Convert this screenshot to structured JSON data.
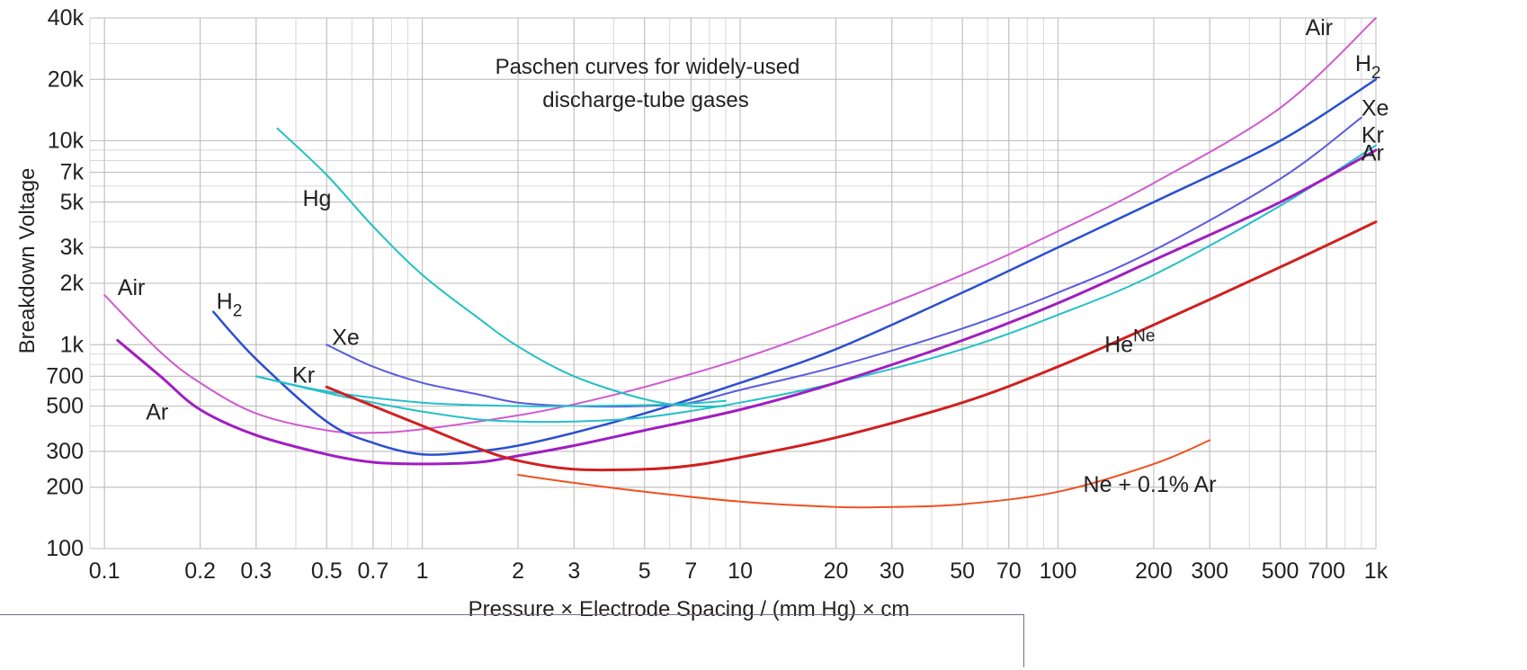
{
  "chart_data": {
    "type": "line",
    "title_lines": [
      "Paschen curves for widely-used",
      "discharge-tube gases"
    ],
    "xlabel": "Pressure × Electrode Spacing  /  (mm Hg) × cm",
    "ylabel": "Breakdown Voltage",
    "x_scale": "log",
    "y_scale": "log",
    "xlim": [
      0.09,
      1000
    ],
    "ylim": [
      100,
      40000
    ],
    "grid": true,
    "x_ticks": [
      {
        "v": 0.1,
        "label": "0.1"
      },
      {
        "v": 0.2,
        "label": "0.2"
      },
      {
        "v": 0.3,
        "label": "0.3"
      },
      {
        "v": 0.5,
        "label": "0.5"
      },
      {
        "v": 0.7,
        "label": "0.7"
      },
      {
        "v": 1,
        "label": "1"
      },
      {
        "v": 2,
        "label": "2"
      },
      {
        "v": 3,
        "label": "3"
      },
      {
        "v": 5,
        "label": "5"
      },
      {
        "v": 7,
        "label": "7"
      },
      {
        "v": 10,
        "label": "10"
      },
      {
        "v": 20,
        "label": "20"
      },
      {
        "v": 30,
        "label": "30"
      },
      {
        "v": 50,
        "label": "50"
      },
      {
        "v": 70,
        "label": "70"
      },
      {
        "v": 100,
        "label": "100"
      },
      {
        "v": 200,
        "label": "200"
      },
      {
        "v": 300,
        "label": "300"
      },
      {
        "v": 500,
        "label": "500"
      },
      {
        "v": 700,
        "label": "700"
      },
      {
        "v": 1000,
        "label": "1k"
      }
    ],
    "y_ticks": [
      {
        "v": 100,
        "label": "100"
      },
      {
        "v": 200,
        "label": "200"
      },
      {
        "v": 300,
        "label": "300"
      },
      {
        "v": 500,
        "label": "500"
      },
      {
        "v": 700,
        "label": "700"
      },
      {
        "v": 1000,
        "label": "1k"
      },
      {
        "v": 2000,
        "label": "2k"
      },
      {
        "v": 3000,
        "label": "3k"
      },
      {
        "v": 5000,
        "label": "5k"
      },
      {
        "v": 7000,
        "label": "7k"
      },
      {
        "v": 10000,
        "label": "10k"
      },
      {
        "v": 20000,
        "label": "20k"
      },
      {
        "v": 40000,
        "label": "40k"
      }
    ],
    "series": [
      {
        "name": "Air",
        "color": "#d05ad0",
        "width": 2,
        "points": [
          [
            0.1,
            1750
          ],
          [
            0.15,
            920
          ],
          [
            0.2,
            650
          ],
          [
            0.3,
            460
          ],
          [
            0.5,
            380
          ],
          [
            0.7,
            370
          ],
          [
            1,
            385
          ],
          [
            2,
            450
          ],
          [
            3,
            510
          ],
          [
            5,
            620
          ],
          [
            10,
            850
          ],
          [
            20,
            1250
          ],
          [
            50,
            2200
          ],
          [
            100,
            3600
          ],
          [
            200,
            6200
          ],
          [
            500,
            14500
          ],
          [
            1000,
            40000
          ]
        ]
      },
      {
        "name": "H2",
        "color": "#2b4fd0",
        "width": 2.5,
        "points": [
          [
            0.22,
            1450
          ],
          [
            0.3,
            850
          ],
          [
            0.5,
            420
          ],
          [
            0.7,
            330
          ],
          [
            1,
            290
          ],
          [
            1.5,
            300
          ],
          [
            2,
            320
          ],
          [
            3,
            370
          ],
          [
            5,
            460
          ],
          [
            10,
            650
          ],
          [
            20,
            950
          ],
          [
            50,
            1800
          ],
          [
            100,
            3000
          ],
          [
            200,
            5000
          ],
          [
            500,
            10000
          ],
          [
            1000,
            20000
          ]
        ]
      },
      {
        "name": "Xe",
        "color": "#5a5ae0",
        "width": 2,
        "points": [
          [
            0.5,
            1000
          ],
          [
            0.7,
            780
          ],
          [
            1,
            650
          ],
          [
            1.5,
            570
          ],
          [
            2,
            520
          ],
          [
            3,
            500
          ],
          [
            5,
            500
          ],
          [
            7,
            520
          ],
          [
            10,
            600
          ],
          [
            20,
            780
          ],
          [
            50,
            1200
          ],
          [
            100,
            1800
          ],
          [
            200,
            2900
          ],
          [
            500,
            6500
          ],
          [
            900,
            13000
          ]
        ]
      },
      {
        "name": "Kr",
        "color": "#24c0c8",
        "width": 2,
        "points": [
          [
            0.3,
            700
          ],
          [
            0.5,
            580
          ],
          [
            0.7,
            520
          ],
          [
            1,
            470
          ],
          [
            1.5,
            430
          ],
          [
            2,
            420
          ],
          [
            3,
            420
          ],
          [
            5,
            440
          ],
          [
            10,
            520
          ],
          [
            20,
            650
          ],
          [
            50,
            950
          ],
          [
            100,
            1400
          ],
          [
            200,
            2200
          ],
          [
            500,
            4800
          ],
          [
            1000,
            9500
          ]
        ]
      },
      {
        "name": "Ar",
        "color": "#a01ec0",
        "width": 3,
        "points": [
          [
            0.11,
            1050
          ],
          [
            0.15,
            700
          ],
          [
            0.2,
            480
          ],
          [
            0.3,
            360
          ],
          [
            0.5,
            290
          ],
          [
            0.7,
            265
          ],
          [
            1,
            260
          ],
          [
            1.5,
            265
          ],
          [
            2,
            285
          ],
          [
            3,
            320
          ],
          [
            5,
            380
          ],
          [
            10,
            480
          ],
          [
            20,
            650
          ],
          [
            50,
            1050
          ],
          [
            100,
            1600
          ],
          [
            200,
            2600
          ],
          [
            500,
            5000
          ],
          [
            1000,
            9000
          ]
        ]
      },
      {
        "name": "Hg",
        "color": "#22c0c0",
        "width": 2,
        "points": [
          [
            0.35,
            11500
          ],
          [
            0.5,
            6800
          ],
          [
            0.7,
            3800
          ],
          [
            1,
            2200
          ],
          [
            1.5,
            1350
          ],
          [
            2,
            980
          ],
          [
            3,
            700
          ],
          [
            5,
            540
          ],
          [
            7,
            500
          ],
          [
            9,
            500
          ]
        ]
      },
      {
        "name": "Kr (short)",
        "color": "#24c0c8",
        "width": 2,
        "points": [
          [
            0.3,
            700
          ],
          [
            0.5,
            590
          ],
          [
            1,
            520
          ],
          [
            2,
            500
          ],
          [
            3,
            500
          ],
          [
            5,
            505
          ],
          [
            7,
            515
          ],
          [
            9,
            530
          ]
        ]
      },
      {
        "name": "Ne",
        "color": "#d02020",
        "width": 3,
        "points": [
          [
            0.5,
            620
          ],
          [
            0.7,
            500
          ],
          [
            1,
            400
          ],
          [
            1.5,
            310
          ],
          [
            2,
            270
          ],
          [
            3,
            245
          ],
          [
            5,
            245
          ],
          [
            7,
            255
          ],
          [
            10,
            280
          ],
          [
            20,
            350
          ],
          [
            50,
            520
          ],
          [
            100,
            780
          ],
          [
            200,
            1250
          ],
          [
            500,
            2400
          ],
          [
            1000,
            4000
          ]
        ]
      },
      {
        "name": "Ne + 0.1% Ar",
        "color": "#f05020",
        "width": 2,
        "points": [
          [
            2,
            230
          ],
          [
            3,
            210
          ],
          [
            5,
            190
          ],
          [
            10,
            170
          ],
          [
            20,
            160
          ],
          [
            30,
            160
          ],
          [
            50,
            165
          ],
          [
            100,
            190
          ],
          [
            200,
            260
          ],
          [
            300,
            340
          ]
        ]
      }
    ],
    "labels": [
      {
        "text": "Air",
        "x": 0.11,
        "y": 1750
      },
      {
        "text": "Ar",
        "x": 0.135,
        "y": 430
      },
      {
        "text": "H",
        "sub": "2",
        "x": 0.225,
        "y": 1500
      },
      {
        "text": "Kr",
        "x": 0.39,
        "y": 650
      },
      {
        "text": "Xe",
        "x": 0.52,
        "y": 1000
      },
      {
        "text": "Hg",
        "x": 0.42,
        "y": 4800
      },
      {
        "text": "Air",
        "x": 600,
        "y": 33000
      },
      {
        "text": "H",
        "sub": "2",
        "x": 860,
        "y": 22000
      },
      {
        "text": "Xe",
        "x": 900,
        "y": 13300
      },
      {
        "text": "Kr",
        "x": 900,
        "y": 9800
      },
      {
        "text": "Ar",
        "x": 900,
        "y": 8000
      },
      {
        "text": "He",
        "sup": "Ne",
        "x": 140,
        "y": 920
      },
      {
        "text": "Ne + 0.1% Ar",
        "x": 120,
        "y": 190
      }
    ]
  }
}
